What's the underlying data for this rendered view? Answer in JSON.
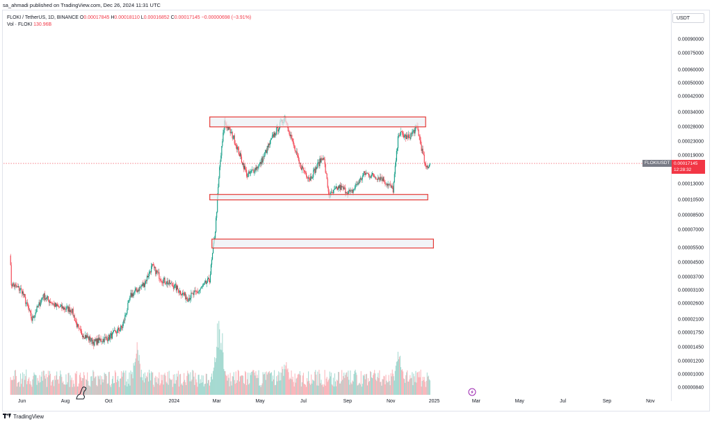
{
  "caption": "sa_ahmadi published on TradingView.com, Dec 26, 2024 11:31 UTC",
  "legend": {
    "symbol": "FLOKI / TetherUS, 1D, BINANCE",
    "o_label": "O",
    "o_value": "0.00017845",
    "h_label": "H",
    "h_value": "0.00018110",
    "l_label": "L",
    "l_value": "0.00016852",
    "c_label": "C",
    "c_value": "0.00017145",
    "change": "−0.00000698 (−3.91%)",
    "vol_label": "Vol · FLOKI",
    "vol_value": "130.96B"
  },
  "currency_button": "USDT",
  "symbol_tag": "FLOKIUSDT",
  "price_tag": {
    "price": "0.00017145",
    "countdown": "12:28:32"
  },
  "price_axis": [
    "0.00090000",
    "0.00075000",
    "0.00060000",
    "0.00050000",
    "0.00042000",
    "0.00034000",
    "0.00028000",
    "0.00023000",
    "0.00019000",
    "0.00013000",
    "0.00010500",
    "0.00008500",
    "0.00007000",
    "0.00005500",
    "0.00004500",
    "0.00003700",
    "0.00003100",
    "0.00002600",
    "0.00002100",
    "0.00001750",
    "0.00001450",
    "0.00001200",
    "0.00001000",
    "0.00000840"
  ],
  "time_axis": [
    "Jun",
    "Aug",
    "Oct",
    "2024",
    "Mar",
    "May",
    "Jul",
    "Sep",
    "Nov",
    "2025",
    "Mar",
    "May",
    "Jul",
    "Sep",
    "Nov"
  ],
  "brand": "TradingView",
  "colors": {
    "up": "#089981",
    "down": "#f23645",
    "zone_border": "#e53935",
    "zone_fill": "#eceff4"
  },
  "icons": {
    "logo": "tradingview-logo-icon",
    "mascot": "dinosaur-icon",
    "bolt": "lightning-icon"
  },
  "zones": [
    {
      "name": "resistance-zone",
      "low": 0.00028,
      "high": 0.00032
    },
    {
      "name": "support-zone",
      "low": 0.000105,
      "high": 0.000113
    },
    {
      "name": "lower-support-zone",
      "low": 5.5e-05,
      "high": 6.2e-05
    }
  ],
  "chart_data": {
    "type": "candlestick",
    "symbol": "FLOKIUSDT",
    "interval": "1D",
    "scale": "log",
    "ylim": [
      7.8e-06,
      0.0011
    ],
    "xlim": [
      "2023-05-06",
      "2025-11-30"
    ],
    "last_close": 0.00017145,
    "anchors": [
      {
        "date": "2023-05-15",
        "close": 5.2e-05
      },
      {
        "date": "2023-05-17",
        "close": 3.4e-05
      },
      {
        "date": "2023-06-01",
        "close": 3.1e-05
      },
      {
        "date": "2023-06-15",
        "close": 2.1e-05
      },
      {
        "date": "2023-07-01",
        "close": 2.9e-05
      },
      {
        "date": "2023-07-20",
        "close": 2.5e-05
      },
      {
        "date": "2023-08-10",
        "close": 2.4e-05
      },
      {
        "date": "2023-08-20",
        "close": 1.8e-05
      },
      {
        "date": "2023-09-10",
        "close": 1.55e-05
      },
      {
        "date": "2023-10-01",
        "close": 1.65e-05
      },
      {
        "date": "2023-10-20",
        "close": 1.9e-05
      },
      {
        "date": "2023-11-01",
        "close": 2.9e-05
      },
      {
        "date": "2023-11-20",
        "close": 3.4e-05
      },
      {
        "date": "2023-12-01",
        "close": 4.3e-05
      },
      {
        "date": "2023-12-15",
        "close": 3.6e-05
      },
      {
        "date": "2024-01-01",
        "close": 3.3e-05
      },
      {
        "date": "2024-01-20",
        "close": 2.8e-05
      },
      {
        "date": "2024-02-05",
        "close": 3.1e-05
      },
      {
        "date": "2024-02-20",
        "close": 3.6e-05
      },
      {
        "date": "2024-02-28",
        "close": 7e-05
      },
      {
        "date": "2024-03-05",
        "close": 0.00016
      },
      {
        "date": "2024-03-12",
        "close": 0.0003
      },
      {
        "date": "2024-03-25",
        "close": 0.00024
      },
      {
        "date": "2024-04-13",
        "close": 0.000145
      },
      {
        "date": "2024-05-01",
        "close": 0.00017
      },
      {
        "date": "2024-05-20",
        "close": 0.00025
      },
      {
        "date": "2024-06-05",
        "close": 0.00032
      },
      {
        "date": "2024-06-25",
        "close": 0.00017
      },
      {
        "date": "2024-07-10",
        "close": 0.00014
      },
      {
        "date": "2024-07-29",
        "close": 0.00019
      },
      {
        "date": "2024-08-06",
        "close": 0.00011
      },
      {
        "date": "2024-08-20",
        "close": 0.000125
      },
      {
        "date": "2024-09-06",
        "close": 0.000115
      },
      {
        "date": "2024-09-25",
        "close": 0.00015
      },
      {
        "date": "2024-10-20",
        "close": 0.00014
      },
      {
        "date": "2024-11-04",
        "close": 0.00012
      },
      {
        "date": "2024-11-12",
        "close": 0.00026
      },
      {
        "date": "2024-11-25",
        "close": 0.00024
      },
      {
        "date": "2024-12-08",
        "close": 0.00028
      },
      {
        "date": "2024-12-20",
        "close": 0.00016
      },
      {
        "date": "2024-12-26",
        "close": 0.00017145
      }
    ],
    "volume_peaks": [
      {
        "date": "2024-03-05",
        "relative": 1.0
      },
      {
        "date": "2023-11-10",
        "relative": 0.6
      },
      {
        "date": "2024-11-12",
        "relative": 0.5
      },
      {
        "date": "2024-06-05",
        "relative": 0.45
      }
    ]
  }
}
